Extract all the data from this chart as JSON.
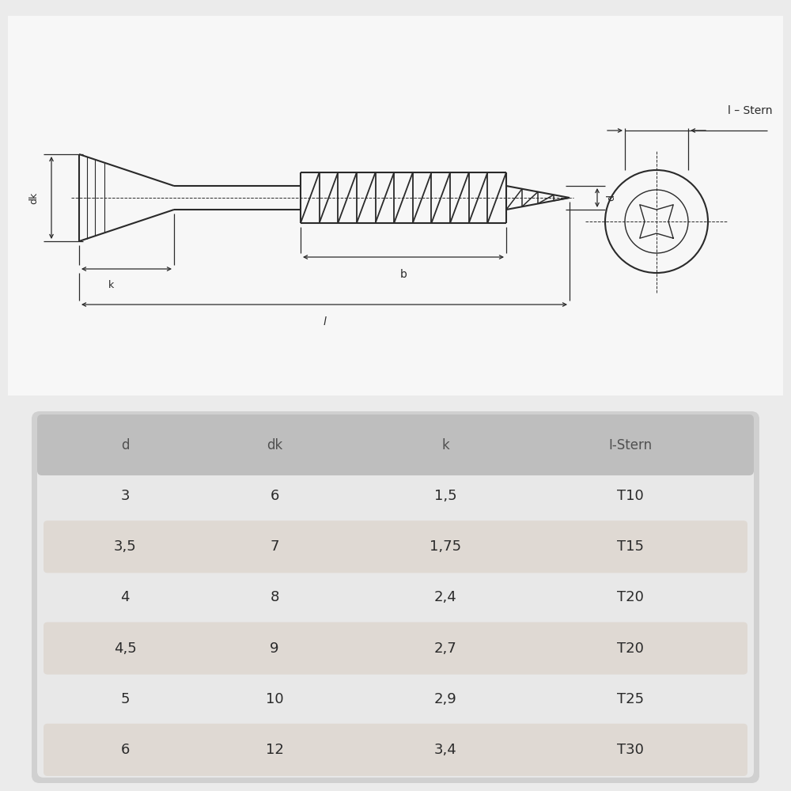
{
  "bg_color": "#ebebeb",
  "drawing_bg": "#f5f5f5",
  "line_color": "#2a2a2a",
  "text_color": "#2a2a2a",
  "dim_color": "#2a2a2a",
  "table_bg": "#d4d4d4",
  "header_color": "#c0c0c0",
  "row_alt_color": "#e8e2dc",
  "row_plain_color": "#f0eeec",
  "headers": [
    "d",
    "dk",
    "k",
    "I-Stern"
  ],
  "rows": [
    [
      "3",
      "6",
      "1,5",
      "T10"
    ],
    [
      "3,5",
      "7",
      "1,75",
      "T15"
    ],
    [
      "4",
      "8",
      "2,4",
      "T20"
    ],
    [
      "4,5",
      "9",
      "2,7",
      "T20"
    ],
    [
      "5",
      "10",
      "2,9",
      "T25"
    ],
    [
      "6",
      "12",
      "3,4",
      "T30"
    ]
  ],
  "highlight_rows": [
    1,
    3,
    5
  ],
  "label_istern": "l – Stern"
}
